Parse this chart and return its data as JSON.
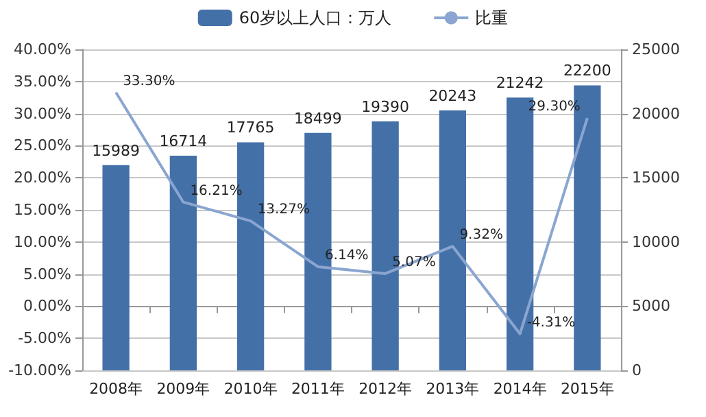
{
  "chart_data": {
    "type": "bar",
    "categories": [
      "2008年",
      "2009年",
      "2010年",
      "2011年",
      "2012年",
      "2013年",
      "2014年",
      "2015年"
    ],
    "series": [
      {
        "name": "60岁以上人口：万人",
        "axis": "y2",
        "color": "#4470a8",
        "values": [
          15989,
          16714,
          17765,
          18499,
          19390,
          20243,
          21242,
          22200
        ],
        "value_labels": [
          "15989",
          "16714",
          "17765",
          "18499",
          "19390",
          "20243",
          "21242",
          "22200"
        ]
      },
      {
        "name": "比重",
        "type": "line",
        "color": "#8aa6d0",
        "values": [
          33.3,
          16.21,
          13.27,
          6.14,
          5.07,
          9.32,
          -4.31,
          29.3
        ],
        "value_labels": [
          "33.30%",
          "16.21%",
          "13.27%",
          "6.14%",
          "5.07%",
          "9.32%",
          "-4.31%",
          "29.30%"
        ]
      }
    ],
    "ylim": [
      -10,
      40
    ],
    "yticks": [
      {
        "value": -10,
        "label": "-10.00%"
      },
      {
        "value": -5,
        "label": "-5.00%"
      },
      {
        "value": 0,
        "label": "0.00%"
      },
      {
        "value": 5,
        "label": "5.00%"
      },
      {
        "value": 10,
        "label": "10.00%"
      },
      {
        "value": 15,
        "label": "15.00%"
      },
      {
        "value": 20,
        "label": "20.00%"
      },
      {
        "value": 25,
        "label": "25.00%"
      },
      {
        "value": 30,
        "label": "30.00%"
      },
      {
        "value": 35,
        "label": "35.00%"
      },
      {
        "value": 40,
        "label": "40.00%"
      }
    ],
    "y2lim": [
      0,
      25000
    ],
    "y2ticks": [
      0,
      5000,
      10000,
      15000,
      20000,
      25000
    ],
    "grid": "y",
    "legend": "top",
    "marker": "none"
  }
}
